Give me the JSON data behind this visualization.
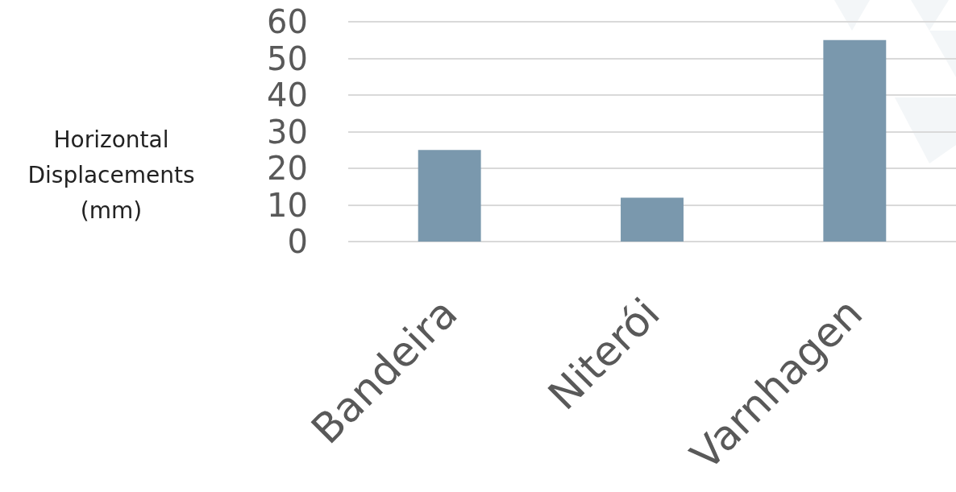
{
  "chart_data": {
    "type": "bar",
    "ylabel": "Horizontal Displacements (mm)",
    "categories": [
      "Bandeira",
      "Niterói",
      "Varnhagen"
    ],
    "values": [
      25,
      12,
      55
    ],
    "color": "#7a98ad",
    "ylim": [
      0,
      60
    ],
    "yticks": [
      0,
      10,
      20,
      30,
      40,
      50,
      60
    ],
    "grid": true
  }
}
